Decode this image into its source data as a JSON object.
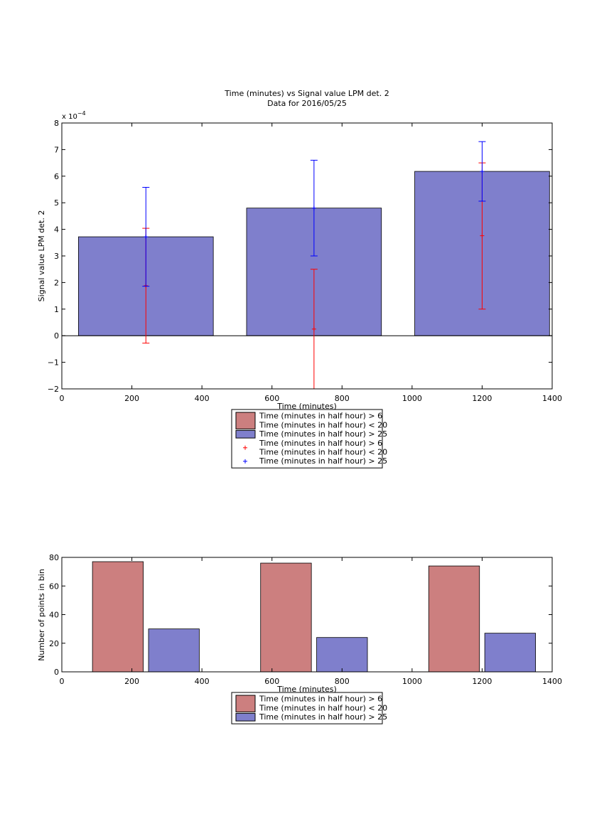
{
  "chart_data": [
    {
      "type": "bar",
      "title": "Time (minutes) vs Signal value LPM det. 2",
      "subtitle": "Data for 2016/05/25",
      "xlabel": "Time (minutes)",
      "ylabel": "Signal value LPM det. 2",
      "y_exponent_label": "x 10",
      "y_exponent_power": "−4",
      "xlim": [
        0,
        1400
      ],
      "ylim": [
        -2,
        8
      ],
      "x_ticks": [
        0,
        200,
        400,
        600,
        800,
        1000,
        1200,
        1400
      ],
      "x_tick_labels": [
        "0",
        "200",
        "400",
        "600",
        "800",
        "1000",
        "1200",
        "1400"
      ],
      "y_ticks": [
        -2,
        -1,
        0,
        1,
        2,
        3,
        4,
        5,
        6,
        7,
        8
      ],
      "y_tick_labels": [
        "−2",
        "−1",
        "0",
        "1",
        "2",
        "3",
        "4",
        "5",
        "6",
        "7",
        "8"
      ],
      "y_scale_note": "values ×10^-4",
      "bars": [
        {
          "center": 240,
          "width": 385,
          "value": 3.72
        },
        {
          "center": 720,
          "width": 385,
          "value": 4.8
        },
        {
          "center": 1200,
          "width": 385,
          "value": 6.18
        }
      ],
      "errorbars": [
        {
          "series": "red",
          "x": 240,
          "center": 1.88,
          "low": -0.28,
          "high": 4.04
        },
        {
          "series": "red",
          "x": 720,
          "center": 0.25,
          "low": -2.0,
          "high": 2.5
        },
        {
          "series": "red",
          "x": 1200,
          "center": 3.76,
          "low": 1.0,
          "high": 6.5
        },
        {
          "series": "blue",
          "x": 240,
          "center": 3.72,
          "low": 1.86,
          "high": 5.58
        },
        {
          "series": "blue",
          "x": 720,
          "center": 4.8,
          "low": 3.0,
          "high": 6.6
        },
        {
          "series": "blue",
          "x": 1200,
          "center": 6.18,
          "low": 5.06,
          "high": 7.3
        }
      ],
      "legend": {
        "placement": "below",
        "entries": [
          {
            "kind": "patch",
            "color": "#cc7f7f",
            "lines": [
              "Time (minutes in half hour) > 6",
              "Time (minutes in half hour) < 20"
            ]
          },
          {
            "kind": "patch",
            "color": "#7f7fcc",
            "lines": [
              "Time (minutes in half hour) > 25"
            ]
          },
          {
            "kind": "marker",
            "color": "#ff0000",
            "lines": [
              "Time (minutes in half hour) > 6",
              "Time (minutes in half hour) < 20"
            ]
          },
          {
            "kind": "marker",
            "color": "#0000ff",
            "lines": [
              "Time (minutes in half hour) > 25"
            ]
          }
        ]
      },
      "colors": {
        "bar": "#7f7fcc",
        "red_err": "#ff0000",
        "blue_err": "#0000ff"
      }
    },
    {
      "type": "bar",
      "xlabel": "Time (minutes)",
      "ylabel": "Number of points in bin",
      "xlim": [
        0,
        1400
      ],
      "ylim": [
        0,
        80
      ],
      "x_ticks": [
        0,
        200,
        400,
        600,
        800,
        1000,
        1200,
        1400
      ],
      "x_tick_labels": [
        "0",
        "200",
        "400",
        "600",
        "800",
        "1000",
        "1200",
        "1400"
      ],
      "y_ticks": [
        0,
        20,
        40,
        60,
        80
      ],
      "y_tick_labels": [
        "0",
        "20",
        "40",
        "60",
        "80"
      ],
      "bars": [
        {
          "series": "red",
          "center": 160,
          "width": 145,
          "value": 77
        },
        {
          "series": "blue",
          "center": 320,
          "width": 145,
          "value": 30
        },
        {
          "series": "red",
          "center": 640,
          "width": 145,
          "value": 76
        },
        {
          "series": "blue",
          "center": 800,
          "width": 145,
          "value": 24
        },
        {
          "series": "red",
          "center": 1120,
          "width": 145,
          "value": 74
        },
        {
          "series": "blue",
          "center": 1280,
          "width": 145,
          "value": 27
        }
      ],
      "legend": {
        "placement": "below",
        "entries": [
          {
            "kind": "patch",
            "color": "#cc7f7f",
            "lines": [
              "Time (minutes in half hour) > 6",
              "Time (minutes in half hour) < 20"
            ]
          },
          {
            "kind": "patch",
            "color": "#7f7fcc",
            "lines": [
              "Time (minutes in half hour) > 25"
            ]
          }
        ]
      },
      "colors": {
        "red": "#cc7f7f",
        "blue": "#7f7fcc"
      }
    }
  ]
}
